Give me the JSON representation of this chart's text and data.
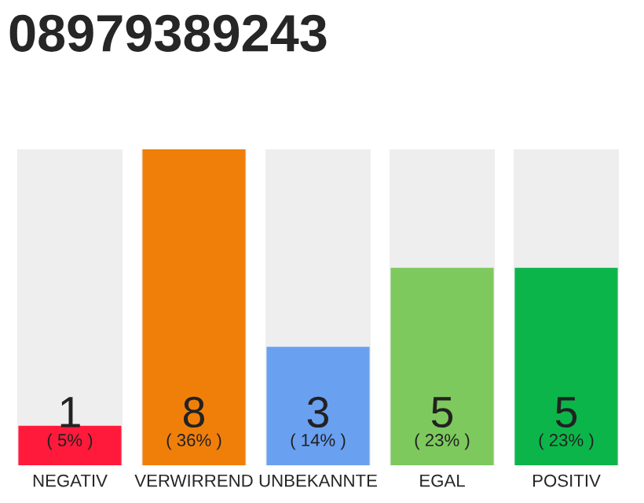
{
  "chart_data": {
    "type": "bar",
    "title": "08979389243",
    "categories": [
      "NEGATIV",
      "VERWIRREND",
      "UNBEKANNTE",
      "EGAL",
      "POSITIV"
    ],
    "values": [
      1,
      8,
      3,
      5,
      5
    ],
    "colors": [
      "#ff1a3c",
      "#f07f0a",
      "#6aa0f0",
      "#7dc95e",
      "#0cb54a"
    ],
    "value_labels": [
      "1",
      "8",
      "3",
      "5",
      "5"
    ],
    "annotations": [
      "( 5% )",
      "( 36% )",
      "( 14% )",
      "( 23% )",
      "( 23% )"
    ],
    "ylim": [
      0,
      8
    ],
    "tick_labels": "x",
    "grid": false,
    "legend": false
  }
}
